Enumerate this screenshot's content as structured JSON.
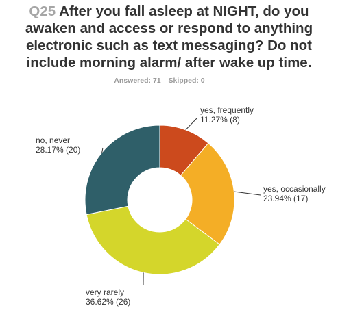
{
  "question": {
    "number": "Q25",
    "lines": [
      "After you fall asleep at NIGHT, do you",
      "awaken and access or respond to anything",
      "electronic such as text messaging? Do not",
      "include morning alarm/ after wake up time."
    ]
  },
  "stats": {
    "answered": "Answered: 71",
    "skipped": "Skipped: 0"
  },
  "chart_data": {
    "type": "pie",
    "variant": "donut",
    "start_angle_deg": 0,
    "direction": "clockwise",
    "slices": [
      {
        "label": "yes, frequently",
        "value_text": "11.27% (8)",
        "percent": 11.27,
        "count": 8,
        "color": "#cc4a1d"
      },
      {
        "label": "yes, occasionally",
        "value_text": "23.94% (17)",
        "percent": 23.94,
        "count": 17,
        "color": "#f4ae26"
      },
      {
        "label": "very rarely",
        "value_text": "36.62% (26)",
        "percent": 36.62,
        "count": 26,
        "color": "#d4d62b"
      },
      {
        "label": "no, never",
        "value_text": "28.17% (20)",
        "percent": 28.17,
        "count": 20,
        "color": "#2f5f69"
      }
    ]
  }
}
